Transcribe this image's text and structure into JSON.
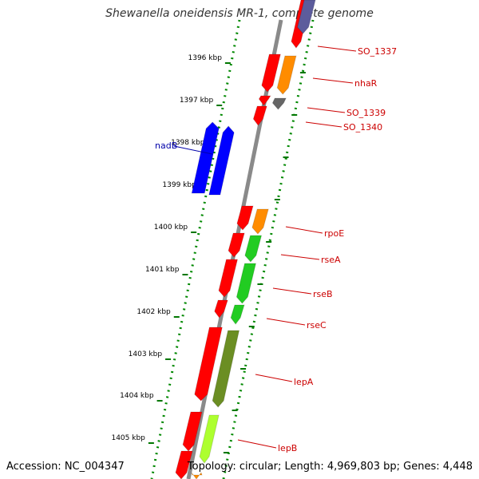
{
  "title": "Shewanella oneidensis MR-1, complete genome",
  "footer": {
    "accession": "Accession: NC_004347",
    "topology": "Topology: circular; Length: 4,969,803 bp; Genes: 4,448"
  },
  "ticks": [
    "1396 kbp",
    "1397 kbp",
    "1398 kbp",
    "1399 kbp",
    "1400 kbp",
    "1401 kbp",
    "1402 kbp",
    "1403 kbp",
    "1404 kbp",
    "1405 kbp"
  ],
  "colors": {
    "red": "#ff0000",
    "orange": "#ff8c00",
    "green": "#22cc22",
    "olive": "#6b8e23",
    "lime": "#adff2f",
    "blue": "#0000ff",
    "slate": "#5c5c9c",
    "gray": "#666666",
    "label_red": "#cc0000",
    "label_blue": "#0000aa",
    "tick_green": "#007700"
  },
  "gene_labels": [
    {
      "name": "SO_1337",
      "side": "right"
    },
    {
      "name": "nhaR",
      "side": "right"
    },
    {
      "name": "SO_1339",
      "side": "right"
    },
    {
      "name": "SO_1340",
      "side": "right"
    },
    {
      "name": "nadB",
      "side": "left"
    },
    {
      "name": "rpoE",
      "side": "right"
    },
    {
      "name": "rseA",
      "side": "right"
    },
    {
      "name": "rseB",
      "side": "right"
    },
    {
      "name": "rseC",
      "side": "right"
    },
    {
      "name": "lepA",
      "side": "right"
    },
    {
      "name": "lepB",
      "side": "right"
    }
  ]
}
